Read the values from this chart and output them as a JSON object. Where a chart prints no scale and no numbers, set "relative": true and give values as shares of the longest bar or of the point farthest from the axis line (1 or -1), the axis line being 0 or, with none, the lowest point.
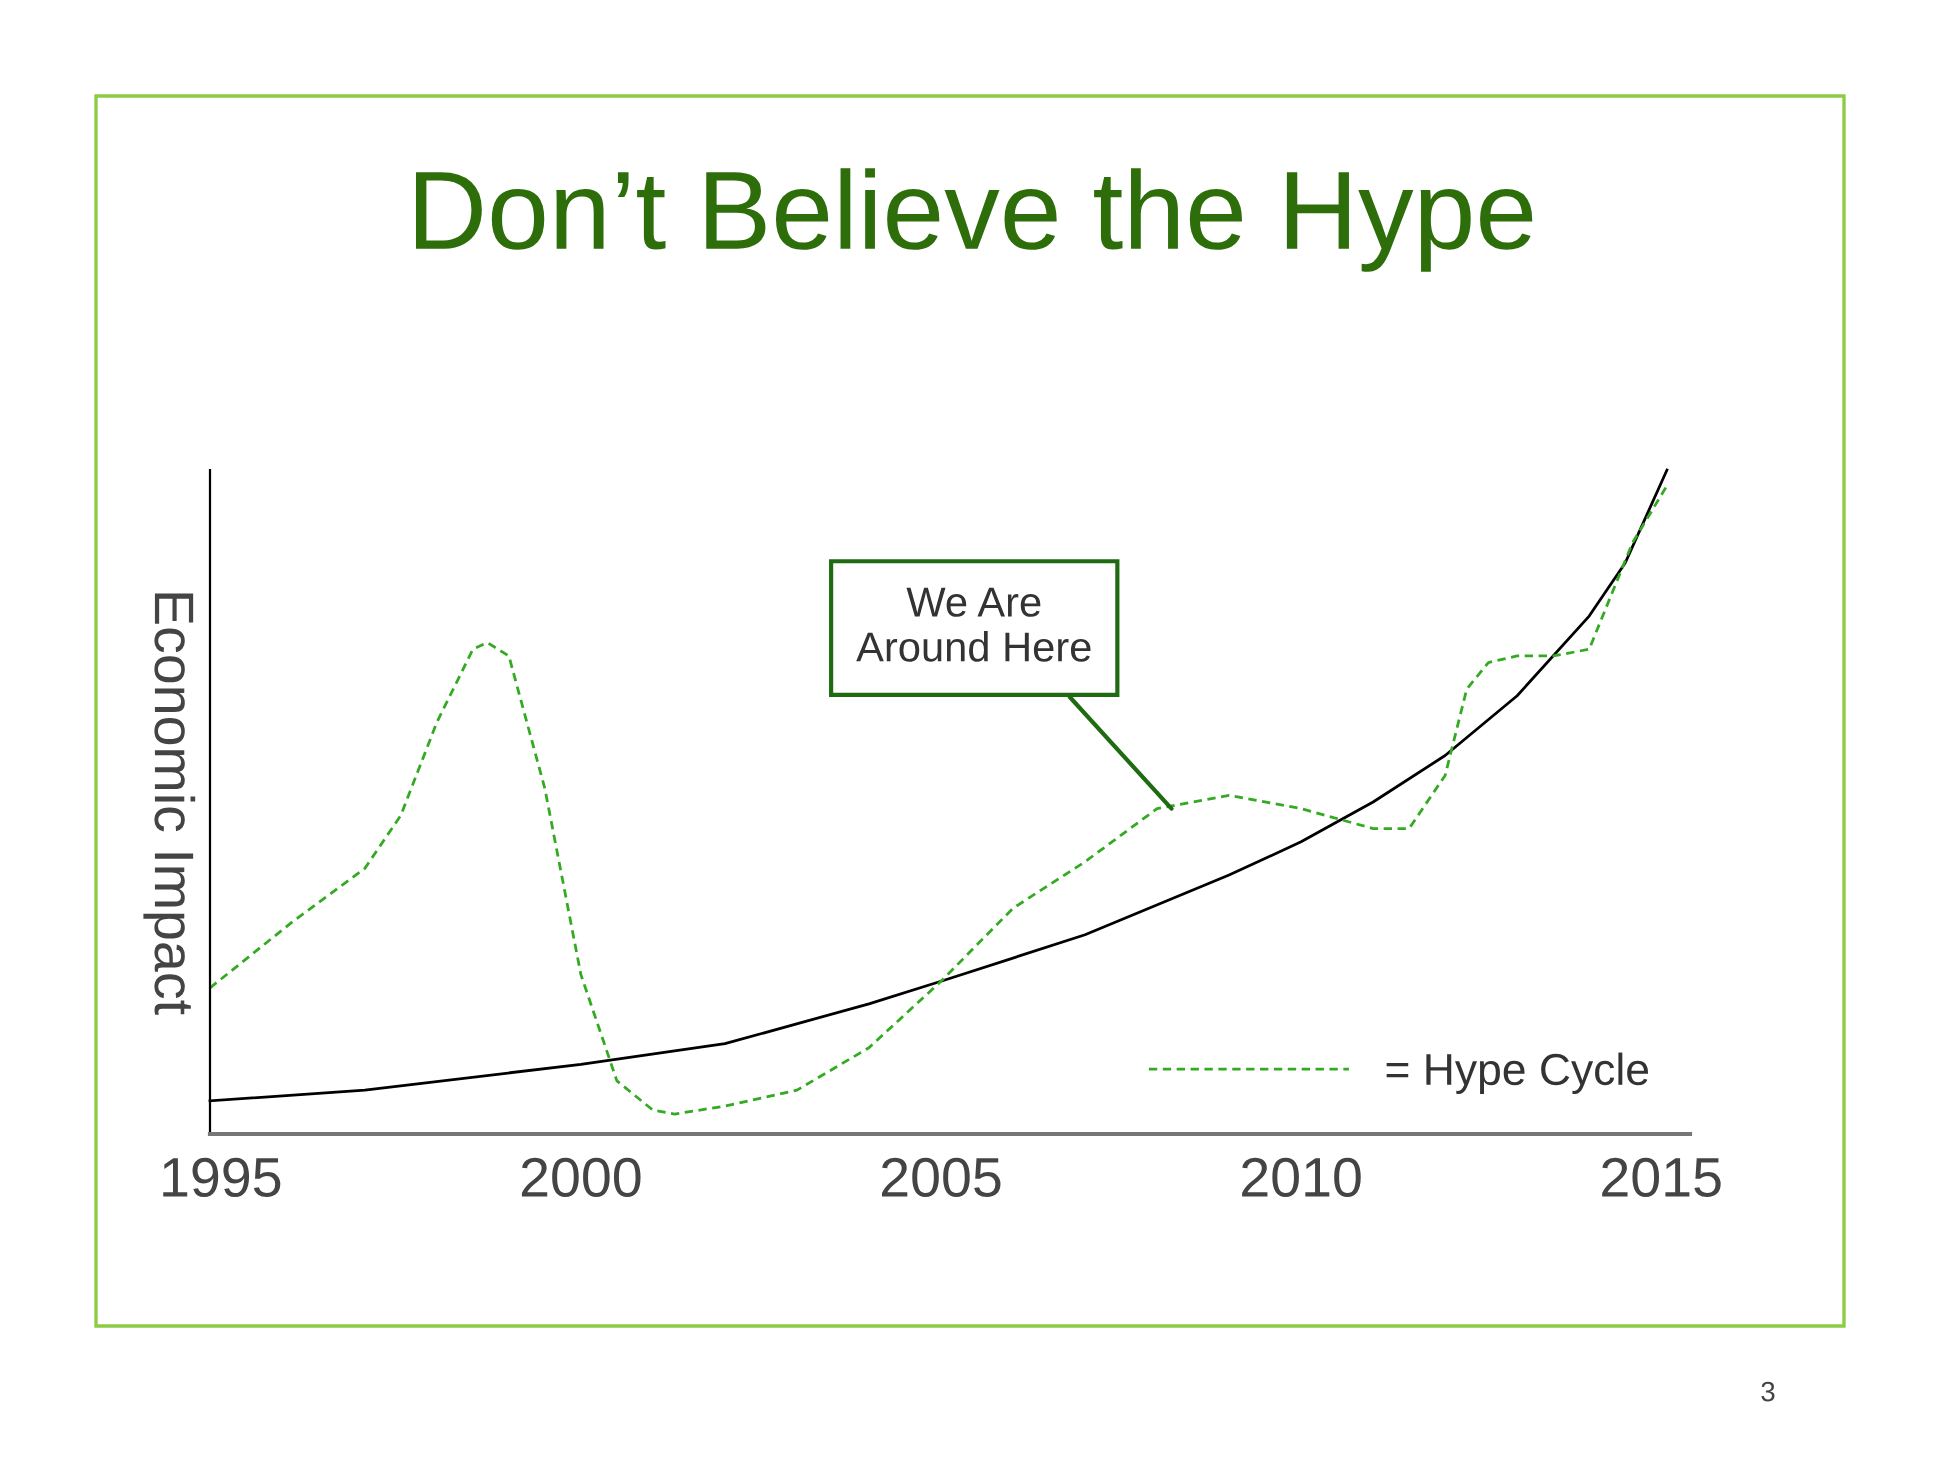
{
  "chart_data": {
    "type": "line",
    "title": "Don’t Believe the Hype",
    "ylabel": "Economic Impact",
    "relative": true,
    "xlim": [
      1994.85,
      2015.4
    ],
    "xticks": [
      1995,
      2000,
      2005,
      2010,
      2015
    ],
    "series": [
      {
        "color": "#000000",
        "line_style": "solid",
        "x": [
          1994.85,
          1997,
          2000,
          2002,
          2004,
          2005,
          2007,
          2009,
          2010,
          2011,
          2012,
          2013,
          2014,
          2014.5,
          2015.08
        ],
        "values": [
          0.05,
          0.066,
          0.105,
          0.136,
          0.196,
          0.23,
          0.3,
          0.39,
          0.44,
          0.5,
          0.57,
          0.66,
          0.78,
          0.86,
          1.0
        ]
      },
      {
        "name": "= Hype Cycle",
        "color": "#33aa22",
        "line_style": "dashed",
        "x": [
          1994.85,
          1996,
          1997,
          1997.5,
          1998,
          1998.5,
          1998.7,
          1999,
          1999.5,
          2000,
          2000.5,
          2001,
          2001.3,
          2002,
          2003,
          2004,
          2005,
          2006,
          2007,
          2008,
          2009,
          2010,
          2011,
          2011.5,
          2012,
          2012.3,
          2012.6,
          2013,
          2013.5,
          2014,
          2014.3,
          2014.6,
          2015.1
        ],
        "values": [
          0.22,
          0.32,
          0.4,
          0.48,
          0.62,
          0.73,
          0.74,
          0.72,
          0.52,
          0.24,
          0.08,
          0.036,
          0.03,
          0.042,
          0.066,
          0.13,
          0.23,
          0.34,
          0.41,
          0.49,
          0.51,
          0.49,
          0.46,
          0.46,
          0.54,
          0.67,
          0.71,
          0.72,
          0.72,
          0.73,
          0.81,
          0.89,
          0.98
        ]
      }
    ],
    "annotations": [
      {
        "text": "We Are\nAround Here",
        "x": 2008.2,
        "y": 0.49
      },
      "3"
    ],
    "legend": "bottom right",
    "grid": false,
    "tick_labels": "x"
  }
}
